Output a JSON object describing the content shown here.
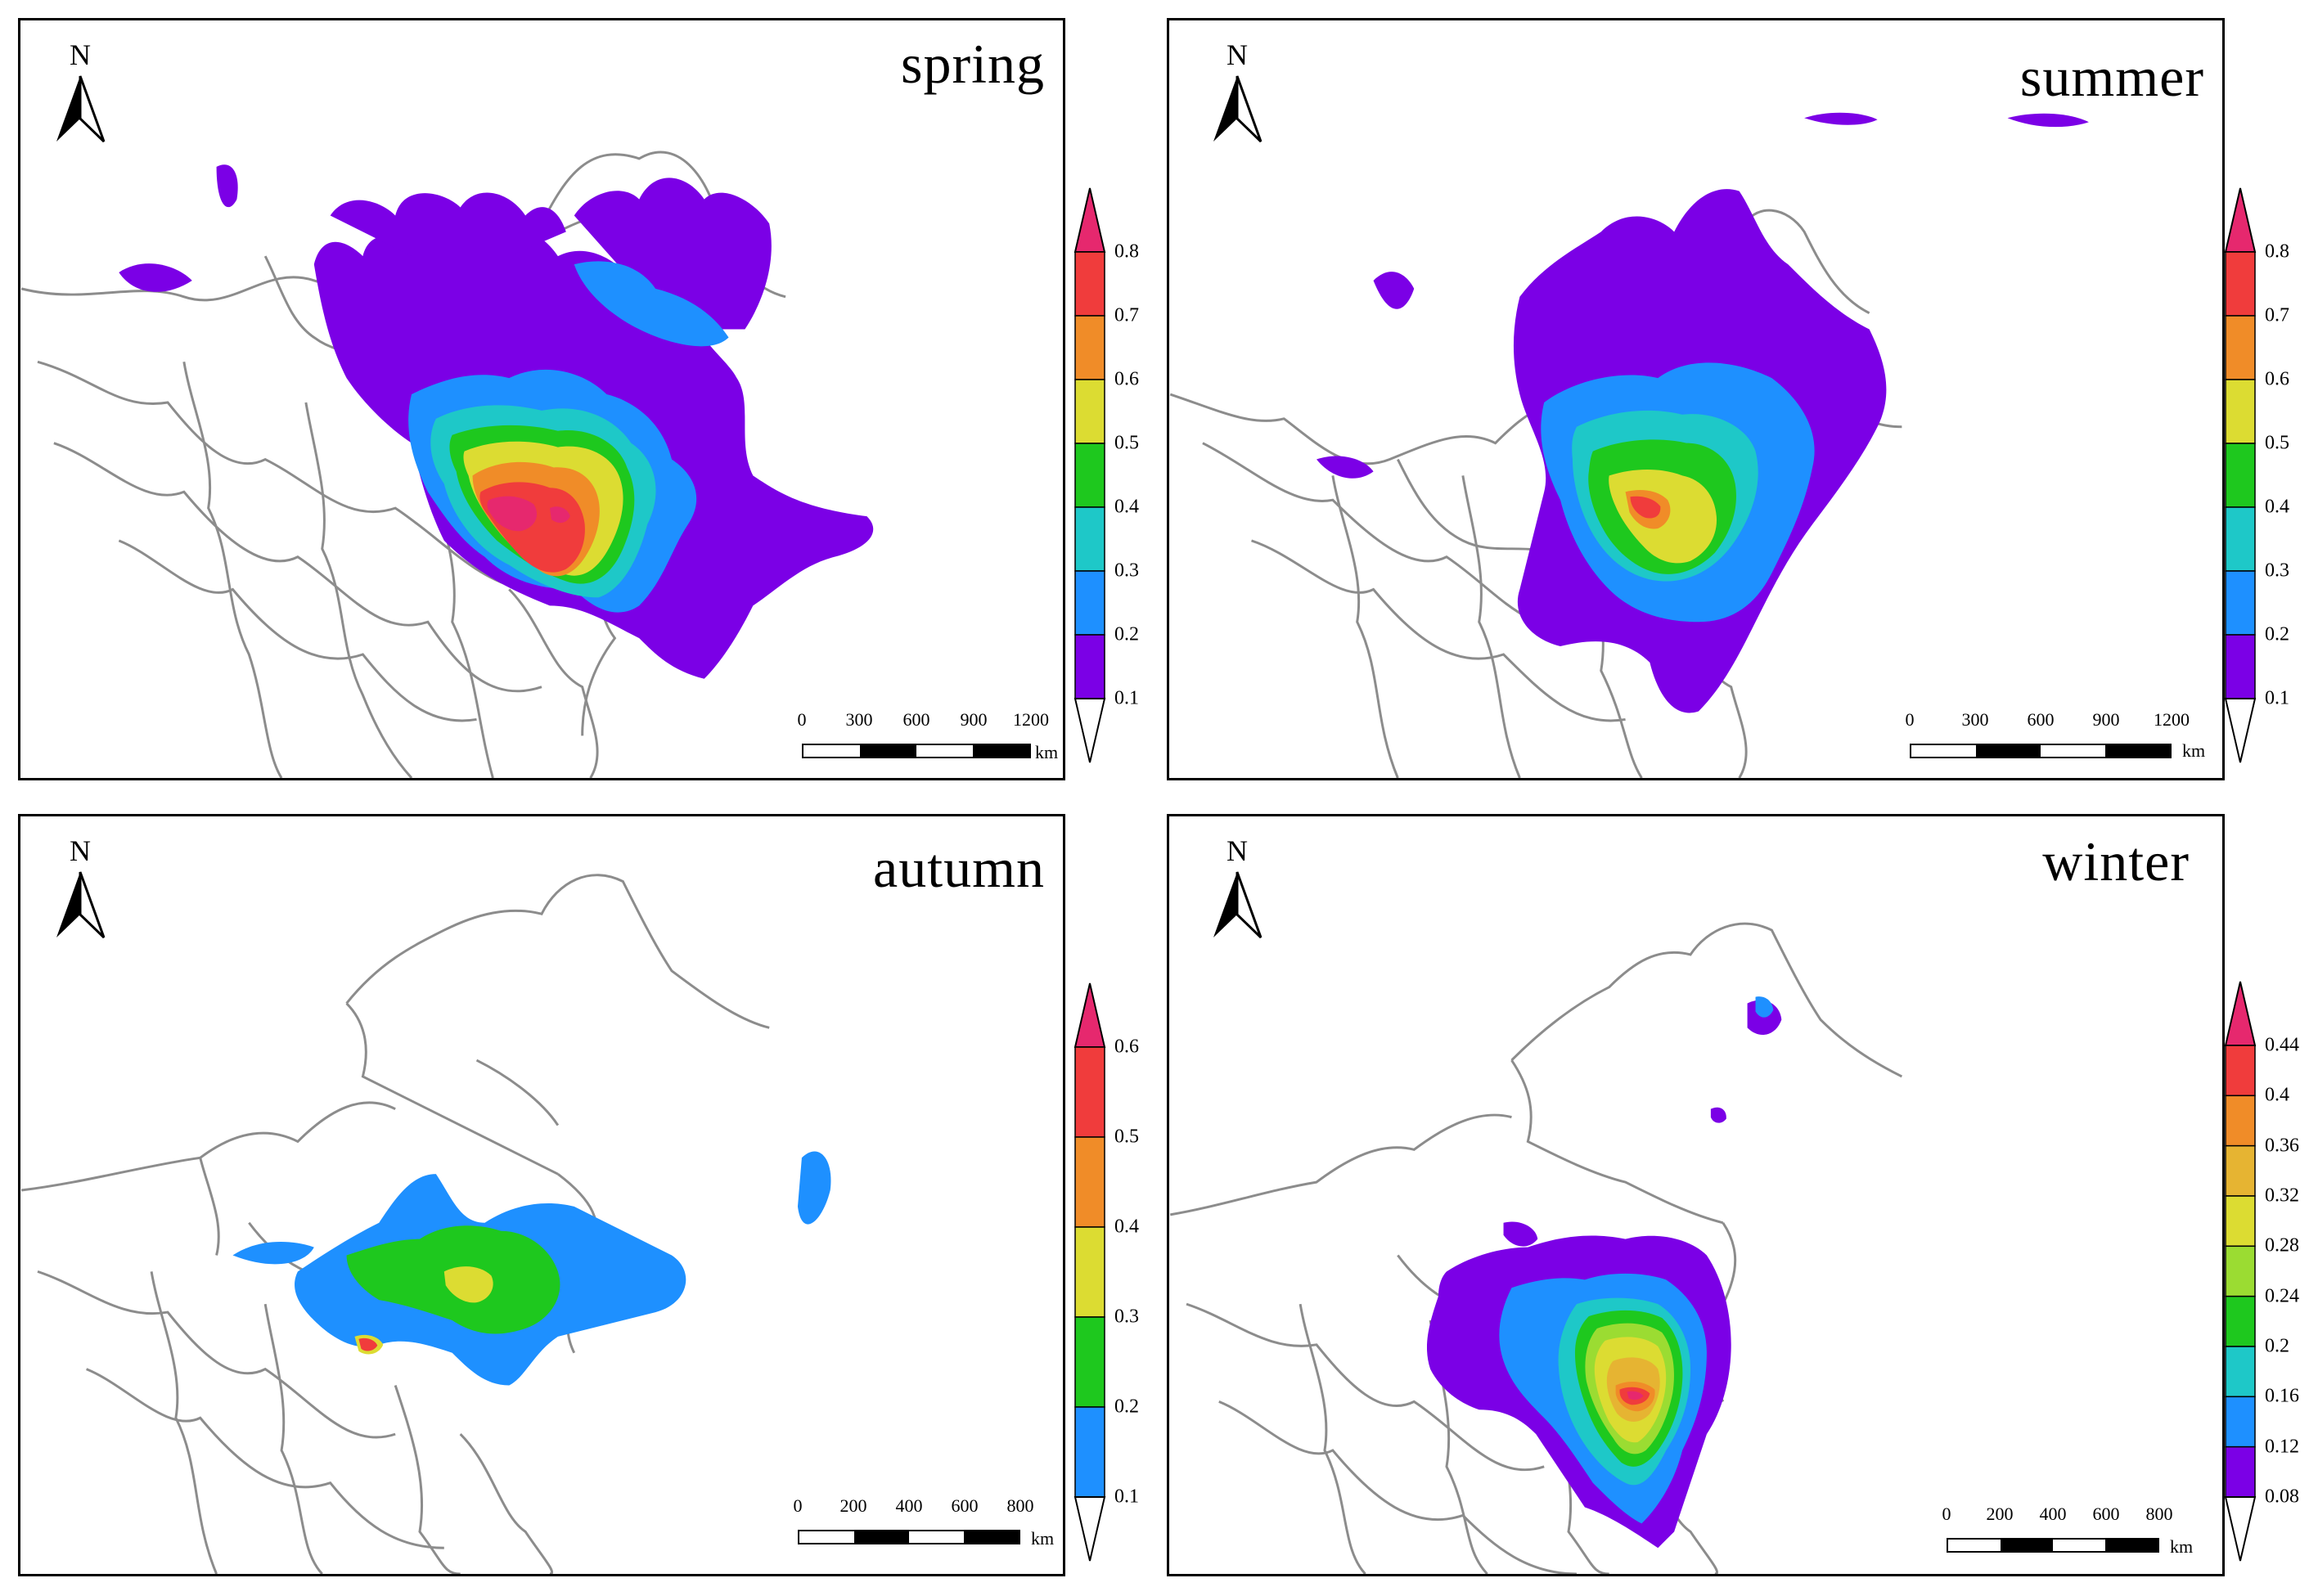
{
  "panels": [
    {
      "key": "spring",
      "title": "spring",
      "north_label": "N",
      "scale": {
        "ticks": [
          "0",
          "300",
          "600",
          "900",
          "1200"
        ],
        "unit": "km"
      },
      "legend": {
        "labels": [
          "0.1",
          "0.2",
          "0.3",
          "0.4",
          "0.5",
          "0.6",
          "0.7",
          "0.8"
        ],
        "colors": [
          "#ffffff",
          "#7b00e6",
          "#1e90ff",
          "#1ec8c8",
          "#1ec81e",
          "#dcdc32",
          "#f08c28",
          "#f03c3c",
          "#e6286e"
        ]
      }
    },
    {
      "key": "summer",
      "title": "summer",
      "north_label": "N",
      "scale": {
        "ticks": [
          "0",
          "300",
          "600",
          "900",
          "1200"
        ],
        "unit": "km"
      },
      "legend": {
        "labels": [
          "0.1",
          "0.2",
          "0.3",
          "0.4",
          "0.5",
          "0.6",
          "0.7",
          "0.8"
        ],
        "colors": [
          "#ffffff",
          "#7b00e6",
          "#1e90ff",
          "#1ec8c8",
          "#1ec81e",
          "#dcdc32",
          "#f08c28",
          "#f03c3c",
          "#e6286e"
        ]
      }
    },
    {
      "key": "autumn",
      "title": "autumn",
      "north_label": "N",
      "scale": {
        "ticks": [
          "0",
          "200",
          "400",
          "600",
          "800"
        ],
        "unit": "km"
      },
      "legend": {
        "labels": [
          "0.1",
          "0.2",
          "0.3",
          "0.4",
          "0.5",
          "0.6"
        ],
        "colors": [
          "#ffffff",
          "#1e90ff",
          "#1ec81e",
          "#dcdc32",
          "#f08c28",
          "#f03c3c",
          "#e6286e"
        ]
      }
    },
    {
      "key": "winter",
      "title": "winter",
      "north_label": "N",
      "scale": {
        "ticks": [
          "0",
          "200",
          "400",
          "600",
          "800"
        ],
        "unit": "km"
      },
      "legend": {
        "labels": [
          "0.08",
          "0.12",
          "0.16",
          "0.2",
          "0.24",
          "0.28",
          "0.32",
          "0.36",
          "0.4",
          "0.44"
        ],
        "colors": [
          "#ffffff",
          "#7b00e6",
          "#1e90ff",
          "#1ec8c8",
          "#1ec81e",
          "#9bdc32",
          "#dcdc32",
          "#e6b432",
          "#f08c28",
          "#f03c3c",
          "#e6286e"
        ]
      }
    }
  ]
}
